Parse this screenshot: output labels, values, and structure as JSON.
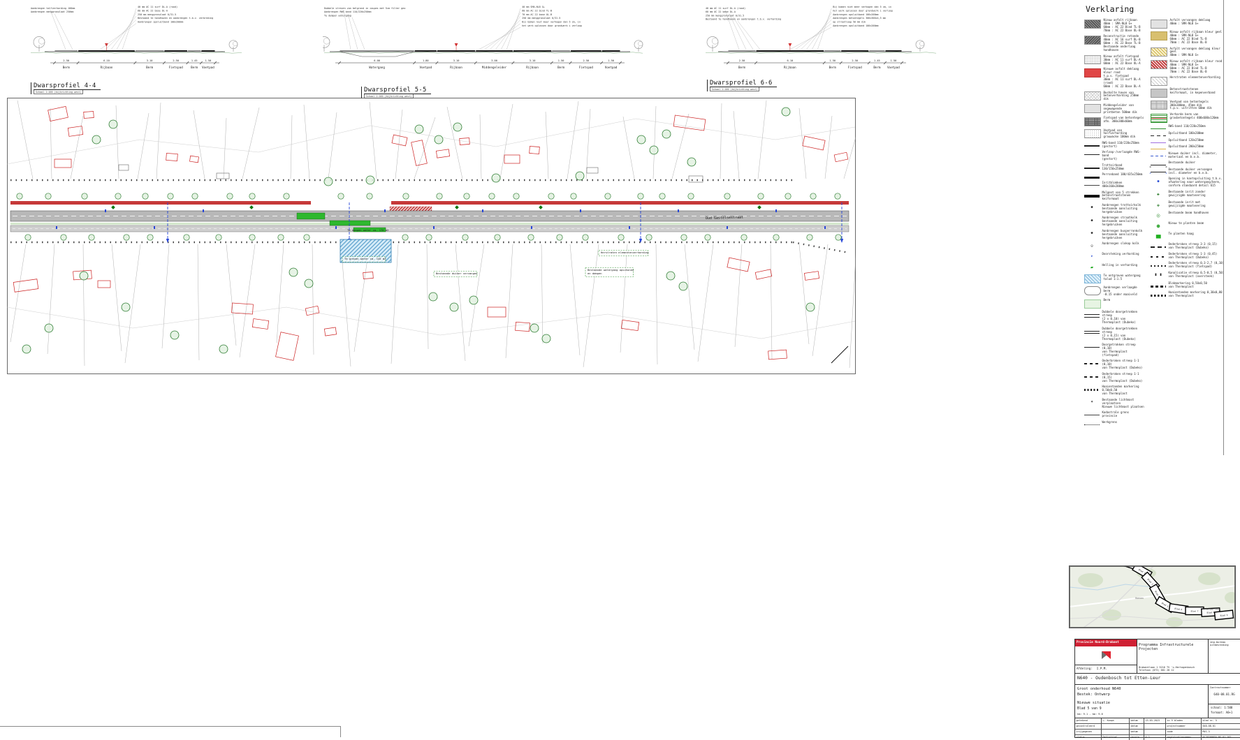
{
  "legend": {
    "title": "Verklaring",
    "col1": [
      {
        "swatch": "sw-hatch-dark",
        "label": "Nieuw asfalt rijbaan\n40mm : SMA-NL8 G+\n60mm : AC 22 Bind TL-B\n70mm : AC 22 Base OL-B"
      },
      {
        "swatch": "sw-hatch-dark2",
        "label": "Reconstructie rotonde\n40mm : AC 16 surf DL-B\n60mm : AC 22 Base TL-B\nBestaande onderlaag handhaven"
      },
      {
        "swatch": "sw-stipple",
        "label": "Nieuw asfalt fietspad\n30mm : AC 11 surf DL-A\n60mm : AC 22 Base OL-A"
      },
      {
        "swatch": "sw-red",
        "label": "Nieuwe asfalt deklaag kleur rood\nt.p.v. fietspad\n30mm : AC 11 surf DL-A (rood)\n60mm : AC 22 Base DL-A"
      },
      {
        "swatch": "sw-crosshatch",
        "label": "Bushalte haven van\nbetonverharding 250mm dik"
      },
      {
        "swatch": "sw-gray-light",
        "label": "Middengeleider van ongewapende\nprintbeton 500mm dik"
      },
      {
        "swatch": "sw-grid-dark",
        "label": "Fietspad van betontegels\nafm. 300x300x60mm"
      },
      {
        "swatch": "sw-stipple2",
        "label": "Voetpad van halfverharding\ngrauwacke 100mm dik"
      },
      {
        "swatch": "ln-thick",
        "label": "RWS-band 110/220x250mm\n(gestort)"
      },
      {
        "swatch": "ln-med",
        "label": "Verloop-/verlaagde RWS-band\n(gestort)"
      },
      {
        "swatch": "ln-thick",
        "label": "Trottoirband 130/150x250mm"
      },
      {
        "swatch": "ln-heavy",
        "label": "Perronband 180/435x250mm"
      },
      {
        "swatch": "ln-thin",
        "label": "Inritblokken 400x160x200mm"
      },
      {
        "swatch": "ln-xheavy",
        "label": "Molgoot van 5 strekken\nbetonstraatstenen keiformaat"
      },
      {
        "swatch": "ic-kolk",
        "label": "Aanbrengen trottoirkolk\nbestaande aansluiting hergebruiken"
      },
      {
        "swatch": "ic-kolk",
        "label": "Aanbrengen straatkolk\nbestaande aansluiting hergebruiken"
      },
      {
        "swatch": "ic-kolk",
        "label": "Aanbrengen busperronkolk\nbestaande aansluiting hergebruiken"
      },
      {
        "swatch": "ic-kolk-sm",
        "label": "Aanbrengen slokop kolk"
      },
      {
        "swatch": "ic-blue-arrow",
        "label": "Doorsteking verharding"
      },
      {
        "swatch": "ic-slope",
        "label": "Helling in verharding"
      },
      {
        "swatch": "sw-water",
        "label": "Te ontgraven watergang\ntalud 1:1.5"
      },
      {
        "swatch": "ic-berm",
        "label": "Aanbrengen verlaagde berm\n-0.15 onder maaiveld"
      },
      {
        "swatch": "sw-green",
        "label": "Berm"
      },
      {
        "swatch": "ln-double",
        "label": "Dubbele doorgetrokken streep\n(2 x 0,10) van Thermoplast (Dubeko)"
      },
      {
        "swatch": "ln-double",
        "label": "Dubbele doorgetrokken streep\n(2 x 0,15) van Thermoplast (Dubeko)"
      },
      {
        "swatch": "ln-med",
        "label": "Doorgetrokken streep (0,10)\nvan Thermoplast (fietspad)"
      },
      {
        "swatch": "ln-dash",
        "label": "Onderbroken streep 1-1 (0,10)\nvan Thermoplast (Dubeko)"
      },
      {
        "swatch": "ln-dash",
        "label": "Onderbroken streep 1-1 (0,15)\nvan Thermoplast (Dubeko)"
      },
      {
        "swatch": "ln-teeth",
        "label": "Haaientanden markering 0,50x0,50\nvan Thermoplast"
      },
      {
        "swatch": "ic-mast",
        "label": "Bestaande lichtmast verplaatsen\nNieuwe lichtmast plaatsen"
      },
      {
        "swatch": "ln-thin",
        "label": "Kadastrale grens provincie"
      },
      {
        "swatch": "ln-dots",
        "label": "Werkgrens"
      }
    ],
    "col2": [
      {
        "swatch": "sw-gray-light",
        "label": "Asfalt vervangen deklaag\n40mm : SMA-NL8 G+"
      },
      {
        "swatch": "sw-tan",
        "label": "Nieuw asfalt rijbaan kleur geel\n40mm : SMA-NL8 G+\n60mm : AC 22 Bind TL-B\n70mm : AC 22 Base OL-B"
      },
      {
        "swatch": "sw-yellow-hatch",
        "label": "Asfalt vervangen deklaag kleur geel\n40mm : SMA-NL8 G+"
      },
      {
        "swatch": "sw-red-hatch",
        "label": "Nieuw asfalt rijbaan kleur rood\n40mm : SMA-NL8 G+\n60mm : AC 22 Bind TL-B\n70mm : AC 22 Base OL-B"
      },
      {
        "swatch": "sw-diag-light",
        "label": "Herstraten elementenverharding"
      },
      {
        "swatch": "sw-gray-mid",
        "label": "Betonstraatstenen\nkeiformaat, in kepenverband"
      },
      {
        "swatch": "sw-grid-fine",
        "label": "Voetpad van betontegels\n300x300mm, 45mm dik\nt.p.v. uitritten 60mm dik"
      },
      {
        "swatch": "sw-grass",
        "label": "Verharde berm van\ngrasbetontegels 400x600x120mm"
      },
      {
        "swatch": "ln-green",
        "label": "RWS-band 110/220x250mm"
      },
      {
        "swatch": "ln-dash-long",
        "label": "Opsluitband 100x200mm"
      },
      {
        "swatch": "ln-purple",
        "label": "Opsluitband 120x250mm"
      },
      {
        "swatch": "ln-orange",
        "label": "Opsluitband 200x250mm"
      },
      {
        "swatch": "ln-blue-dash",
        "label": "Nieuwe duiker incl. diameter,\nmateriaal en b.o.b."
      },
      {
        "swatch": "ln-arrow",
        "label": "Bestaande duiker"
      },
      {
        "swatch": "ln-arrow-blue",
        "label": "Bestaande duiker vervangen\nincl. diameter en b.o.b."
      },
      {
        "swatch": "ic-blue-dot",
        "label": "Opening in kantopsluiting t.b.v.\nafwatering naar watergang/berm,\nconform standaard detail 615"
      },
      {
        "swatch": "ic-green-cross",
        "label": "Bestaande inrit zonder\ngewijzigde maatvoering"
      },
      {
        "swatch": "ic-green-cross2",
        "label": "Bestaande inrit met\ngewijzigde maatvoering"
      },
      {
        "swatch": "ic-tree-exist",
        "label": "Bestaande boom handhaven"
      },
      {
        "swatch": "ic-tree-new",
        "label": "Nieuw te planten boom"
      },
      {
        "swatch": "ic-haag",
        "label": "Te planten haag"
      },
      {
        "swatch": "ln-dash33",
        "label": "Onderbroken streep 3-3 (0,15)\nvan Thermoplast (Dubeko)"
      },
      {
        "swatch": "ln-dash13",
        "label": "Onderbroken streep 1-3 (0,45)\nvan Thermoplast (Dubeko)"
      },
      {
        "swatch": "ln-dash-fine",
        "label": "Onderbroken streep 0,3-2,7 (0,10)\nvan Thermoplast (fietspad)"
      },
      {
        "swatch": "ic-kanal",
        "label": "Kanalisatie streep 0,5-0,5 (0,50)\nvan Thermoplast (oversteek)"
      },
      {
        "swatch": "ln-block",
        "label": "Blokmarkering 0,50x0,50\nvan Thermoplast"
      },
      {
        "swatch": "ln-teeth2",
        "label": "Haaientanden markering 0,30x0,80\nvan Thermoplast"
      }
    ]
  },
  "profiles": [
    {
      "title": "Dwarsprofiel 4-4",
      "subtitle": "Schaal 1:100 (kijkrichting west)",
      "segments": [
        {
          "label": "Berm",
          "dim": "2.50"
        },
        {
          "label": "Rijbaan",
          "dim": "6.10"
        },
        {
          "label": "Berm",
          "dim": "3.10"
        },
        {
          "label": "Fietspad",
          "dim": "2.50"
        },
        {
          "label": "Berm",
          "dim": "1.45"
        },
        {
          "label": "Voetpad",
          "dim": "1.50"
        }
      ],
      "notes_left": [
        "Aanbrengen halfverharding 100mm",
        "Aanbrengen menggranulaat 250mm"
      ],
      "notes_right": [
        "40 mm AC 11 surf DL-A (rood)",
        "60 mm AC 22 base DL-A",
        "250 mm menggranulaat 0/31.5",
        "Bestaand te handhaven en aanbrengen t.b.v. verbreding",
        "Aanbrengen opsluitband 100x200mm"
      ]
    },
    {
      "title": "Dwarsprofiel 5-5",
      "subtitle": "Schaal 1:100 (kijkrichting west)",
      "segments": [
        {
          "label": "Watergang",
          "dim": "6.00"
        },
        {
          "label": "Voetpad",
          "dim": "1.80"
        },
        {
          "label": "Rijbaan",
          "dim": "3.10"
        },
        {
          "label": "Middengeleider",
          "dim": "3.00"
        },
        {
          "label": "Rijbaan",
          "dim": "3.10"
        },
        {
          "label": "Berm",
          "dim": "1.50"
        },
        {
          "label": "Fietspad",
          "dim": "2.50"
        },
        {
          "label": "Voetpad",
          "dim": "1.50"
        }
      ],
      "notes_left": [
        "Dubbele streven van belgrond in coupes met 5cm filter geo",
        "Aanbrengen RWS band 110/220x250mm",
        "Te dempen watergang"
      ],
      "notes_right": [
        "40 mm SMA-NL8 G+",
        "60 mm AC 22 bind TL-B",
        "70 mm AC 22 base OL-B",
        "250 mm menggranulaat 0/31.5",
        "Bij bomen niet meer verhogen dan 5 cm, in",
        "het werk oplossen door grondwerk i verloop"
      ]
    },
    {
      "title": "Dwarsprofiel 6-6",
      "subtitle": "Schaal 1:100 (kijkrichting west)",
      "segments": [
        {
          "label": "Berm",
          "dim": "2.50"
        },
        {
          "label": "Rijbaan",
          "dim": "6.10"
        },
        {
          "label": "Berm",
          "dim": "1.50"
        },
        {
          "label": "Fietspad",
          "dim": "2.50"
        },
        {
          "label": "Berm",
          "dim": "1.45"
        },
        {
          "label": "Voetpad",
          "dim": "1.50"
        }
      ],
      "notes_left": [
        "40 mm AC 11 surf DL-A (rood)",
        "60 mm AC 22 base DL-A",
        "250 mm menggranulaat 0/31.5",
        "Bestaand te handhaven en aanbrengen t.b.v. verharding"
      ],
      "notes_right": [
        "Bij bomen niet meer verhogen dan 5 cm, in",
        "het werk oplossen door grondwerk i verloop",
        "Aanbrengen opsluitband 100x200mm",
        "Aanbrengen betontegels 300x300x4,5 mm",
        "op straatlaag 50 mm dik",
        "Aanbrengen opsluitband 100x200mm"
      ]
    }
  ],
  "plan": {
    "street_label": "Oud Gastelsestraat",
    "annotations": [
      "Te dempen water ca. 170 m2",
      "Te graven water ca. 145 m2",
      "Herstraten elementenverharding",
      "Bestaande watergang opschonen\nen dempen",
      "Bestaande duiker vervangen"
    ]
  },
  "keymap": {
    "towns": [
      "Hoeven",
      "Etten-Leur"
    ],
    "sheets": [
      "Blad 1",
      "Blad 2",
      "Blad 3",
      "Blad 4",
      "Blad 5",
      "Blad 6",
      "Blad 7",
      "Blad 8",
      "Blad 9"
    ]
  },
  "titleblock": {
    "org": "Provincie Noord-Brabant",
    "program": "Programma Infrastructurele Projecten",
    "bureau": "ing.bureau uitbesteding",
    "address": "Brabantlaan 1 5216 TV 's-Hertogenbosch",
    "phone": "Telefoon (073) 681 28 12",
    "afdeling_label": "Afdeling:",
    "afdeling": "I.P.M.",
    "project": "N640 - Oudenbosch tot Etten-Leur",
    "sub1": "Groot onderhoud N640",
    "sub2": "Bestek: Ontwerp",
    "sub3": "Nieuwe situatie",
    "sheet": "Blad 5 van 9",
    "km_line": "km:  9.1        - km:  9.6",
    "contract_label": "Contractnummer",
    "contract": "640-08.01.RG",
    "schaal_line": "schaal:  1:500",
    "formaat_line": "formaat: A0+1",
    "rows": [
      {
        "c1": "getekend",
        "c2": "L. Koops",
        "c3": "datum",
        "c4": "23.03.2023",
        "c5": "in 9 bladen",
        "c6": "blad nr. 5"
      },
      {
        "c1": "gecontroleerd",
        "c2": "",
        "c3": "datum",
        "c4": "",
        "c5": "projectnummer",
        "c6": "640-08.01"
      },
      {
        "c1": "vrijgegeven",
        "c2": "",
        "c3": "datum",
        "c4": "",
        "c5": "code",
        "c6": "MV1.3"
      },
      {
        "c1": "status",
        "c2": "Definitief",
        "c3": "versie",
        "c4": "0.2",
        "c5": "registratienummer",
        "c6": "HL2020065A.BG.01.102"
      }
    ]
  }
}
